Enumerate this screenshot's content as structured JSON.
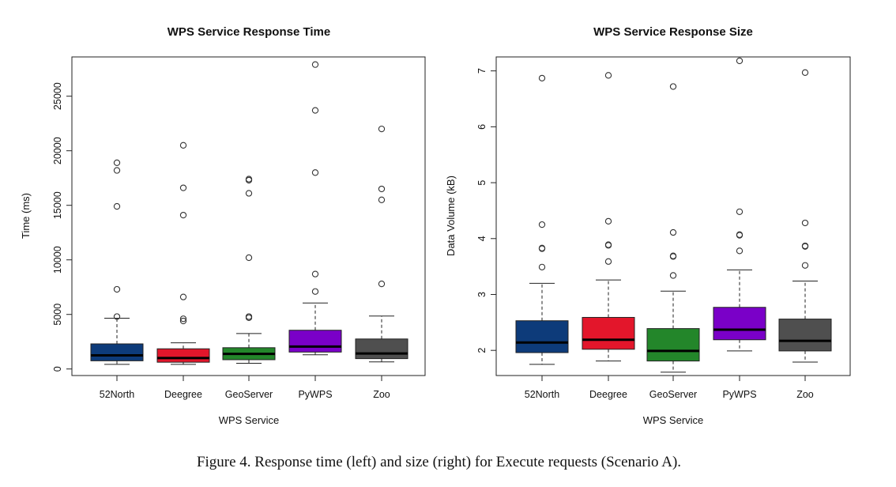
{
  "caption": "Figure 4. Response time (left) and size (right) for Execute requests (Scenario A).",
  "colors": {
    "52North": "#0d3b7a",
    "Deegree": "#e3162b",
    "GeoServer": "#23862a",
    "PyWPS": "#7a00c8",
    "Zoo": "#4f4f4f"
  },
  "chart_data": [
    {
      "type": "boxplot",
      "title": "WPS Service Response Time",
      "xlabel": "WPS Service",
      "ylabel": "Time (ms)",
      "ylim": [
        -600,
        28600
      ],
      "yticks": [
        0,
        5000,
        10000,
        15000,
        20000,
        25000
      ],
      "categories": [
        "52North",
        "Deegree",
        "GeoServer",
        "PyWPS",
        "Zoo"
      ],
      "boxes": [
        {
          "name": "52North",
          "whisker_low": 420,
          "q1": 750,
          "median": 1250,
          "q3": 2300,
          "whisker_high": 4650,
          "outliers": [
            4800,
            7300,
            14900,
            18200,
            18900
          ]
        },
        {
          "name": "Deegree",
          "whisker_low": 420,
          "q1": 620,
          "median": 1000,
          "q3": 1850,
          "whisker_high": 2400,
          "outliers": [
            4400,
            4600,
            6600,
            14100,
            16600,
            20500
          ]
        },
        {
          "name": "GeoServer",
          "whisker_low": 520,
          "q1": 850,
          "median": 1380,
          "q3": 1950,
          "whisker_high": 3250,
          "outliers": [
            4700,
            4800,
            10200,
            16100,
            17300,
            17400
          ]
        },
        {
          "name": "PyWPS",
          "whisker_low": 1300,
          "q1": 1550,
          "median": 2050,
          "q3": 3550,
          "whisker_high": 6050,
          "outliers": [
            7100,
            8700,
            18000,
            23700,
            27900
          ]
        },
        {
          "name": "Zoo",
          "whisker_low": 650,
          "q1": 950,
          "median": 1420,
          "q3": 2750,
          "whisker_high": 4850,
          "outliers": [
            7800,
            15500,
            16500,
            22000
          ]
        }
      ]
    },
    {
      "type": "boxplot",
      "title": "WPS Service Response Size",
      "xlabel": "WPS Service",
      "ylabel": "Data Volume (kB)",
      "ylim": [
        1.55,
        7.25
      ],
      "yticks": [
        2,
        3,
        4,
        5,
        6,
        7
      ],
      "categories": [
        "52North",
        "Deegree",
        "GeoServer",
        "PyWPS",
        "Zoo"
      ],
      "boxes": [
        {
          "name": "52North",
          "whisker_low": 1.75,
          "q1": 1.96,
          "median": 2.14,
          "q3": 2.53,
          "whisker_high": 3.2,
          "outliers": [
            3.49,
            3.82,
            3.83,
            4.25,
            6.87
          ]
        },
        {
          "name": "Deegree",
          "whisker_low": 1.81,
          "q1": 2.02,
          "median": 2.19,
          "q3": 2.59,
          "whisker_high": 3.26,
          "outliers": [
            3.59,
            3.88,
            3.89,
            4.31,
            6.92
          ]
        },
        {
          "name": "GeoServer",
          "whisker_low": 1.61,
          "q1": 1.81,
          "median": 1.99,
          "q3": 2.39,
          "whisker_high": 3.06,
          "outliers": [
            3.34,
            3.68,
            3.69,
            4.11,
            6.72
          ]
        },
        {
          "name": "PyWPS",
          "whisker_low": 1.99,
          "q1": 2.19,
          "median": 2.37,
          "q3": 2.77,
          "whisker_high": 3.44,
          "outliers": [
            3.78,
            4.06,
            4.07,
            4.48,
            7.18
          ]
        },
        {
          "name": "Zoo",
          "whisker_low": 1.79,
          "q1": 1.99,
          "median": 2.17,
          "q3": 2.56,
          "whisker_high": 3.24,
          "outliers": [
            3.52,
            3.86,
            3.87,
            4.28,
            6.97
          ]
        }
      ]
    }
  ]
}
